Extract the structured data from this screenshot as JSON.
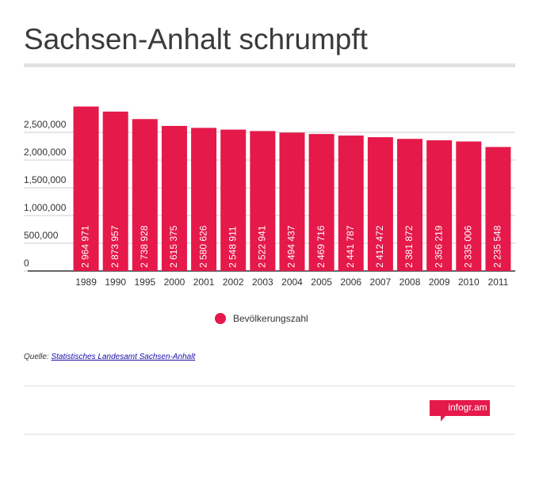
{
  "chart_data": {
    "type": "bar",
    "title": "Sachsen-Anhalt schrumpft",
    "categories": [
      "1989",
      "1990",
      "1995",
      "2000",
      "2001",
      "2002",
      "2003",
      "2004",
      "2005",
      "2006",
      "2007",
      "2008",
      "2009",
      "2010",
      "2011"
    ],
    "series": [
      {
        "name": "Bevölkerungszahl",
        "color": "#e5194a",
        "values": [
          2964971,
          2873957,
          2738928,
          2615375,
          2580626,
          2548911,
          2522941,
          2494437,
          2469716,
          2441787,
          2412472,
          2381872,
          2356219,
          2335006,
          2235548
        ],
        "value_labels": [
          "2 964 971",
          "2 873 957",
          "2 738 928",
          "2 615 375",
          "2 580 626",
          "2 548 911",
          "2 522 941",
          "2 494 437",
          "2 469 716",
          "2 441 787",
          "2 412 472",
          "2 381 872",
          "2 356 219",
          "2 335 006",
          "2 235 548"
        ]
      }
    ],
    "ylim": [
      0,
      3000000
    ],
    "yticks": [
      0,
      {
        "value": 500000,
        "label": "500,000"
      },
      {
        "value": 1000000,
        "label": "1,000,000"
      },
      {
        "value": 1500000,
        "label": "1,500,000"
      },
      {
        "value": 2000000,
        "label": "2,000,000"
      },
      {
        "value": 2500000,
        "label": "2,500,000"
      }
    ],
    "grid": true,
    "legend": "bottom",
    "source_label": "Quelle:",
    "source": "Statistisches Landesamt Sachsen-Anhalt",
    "branding": "infogr.am"
  }
}
